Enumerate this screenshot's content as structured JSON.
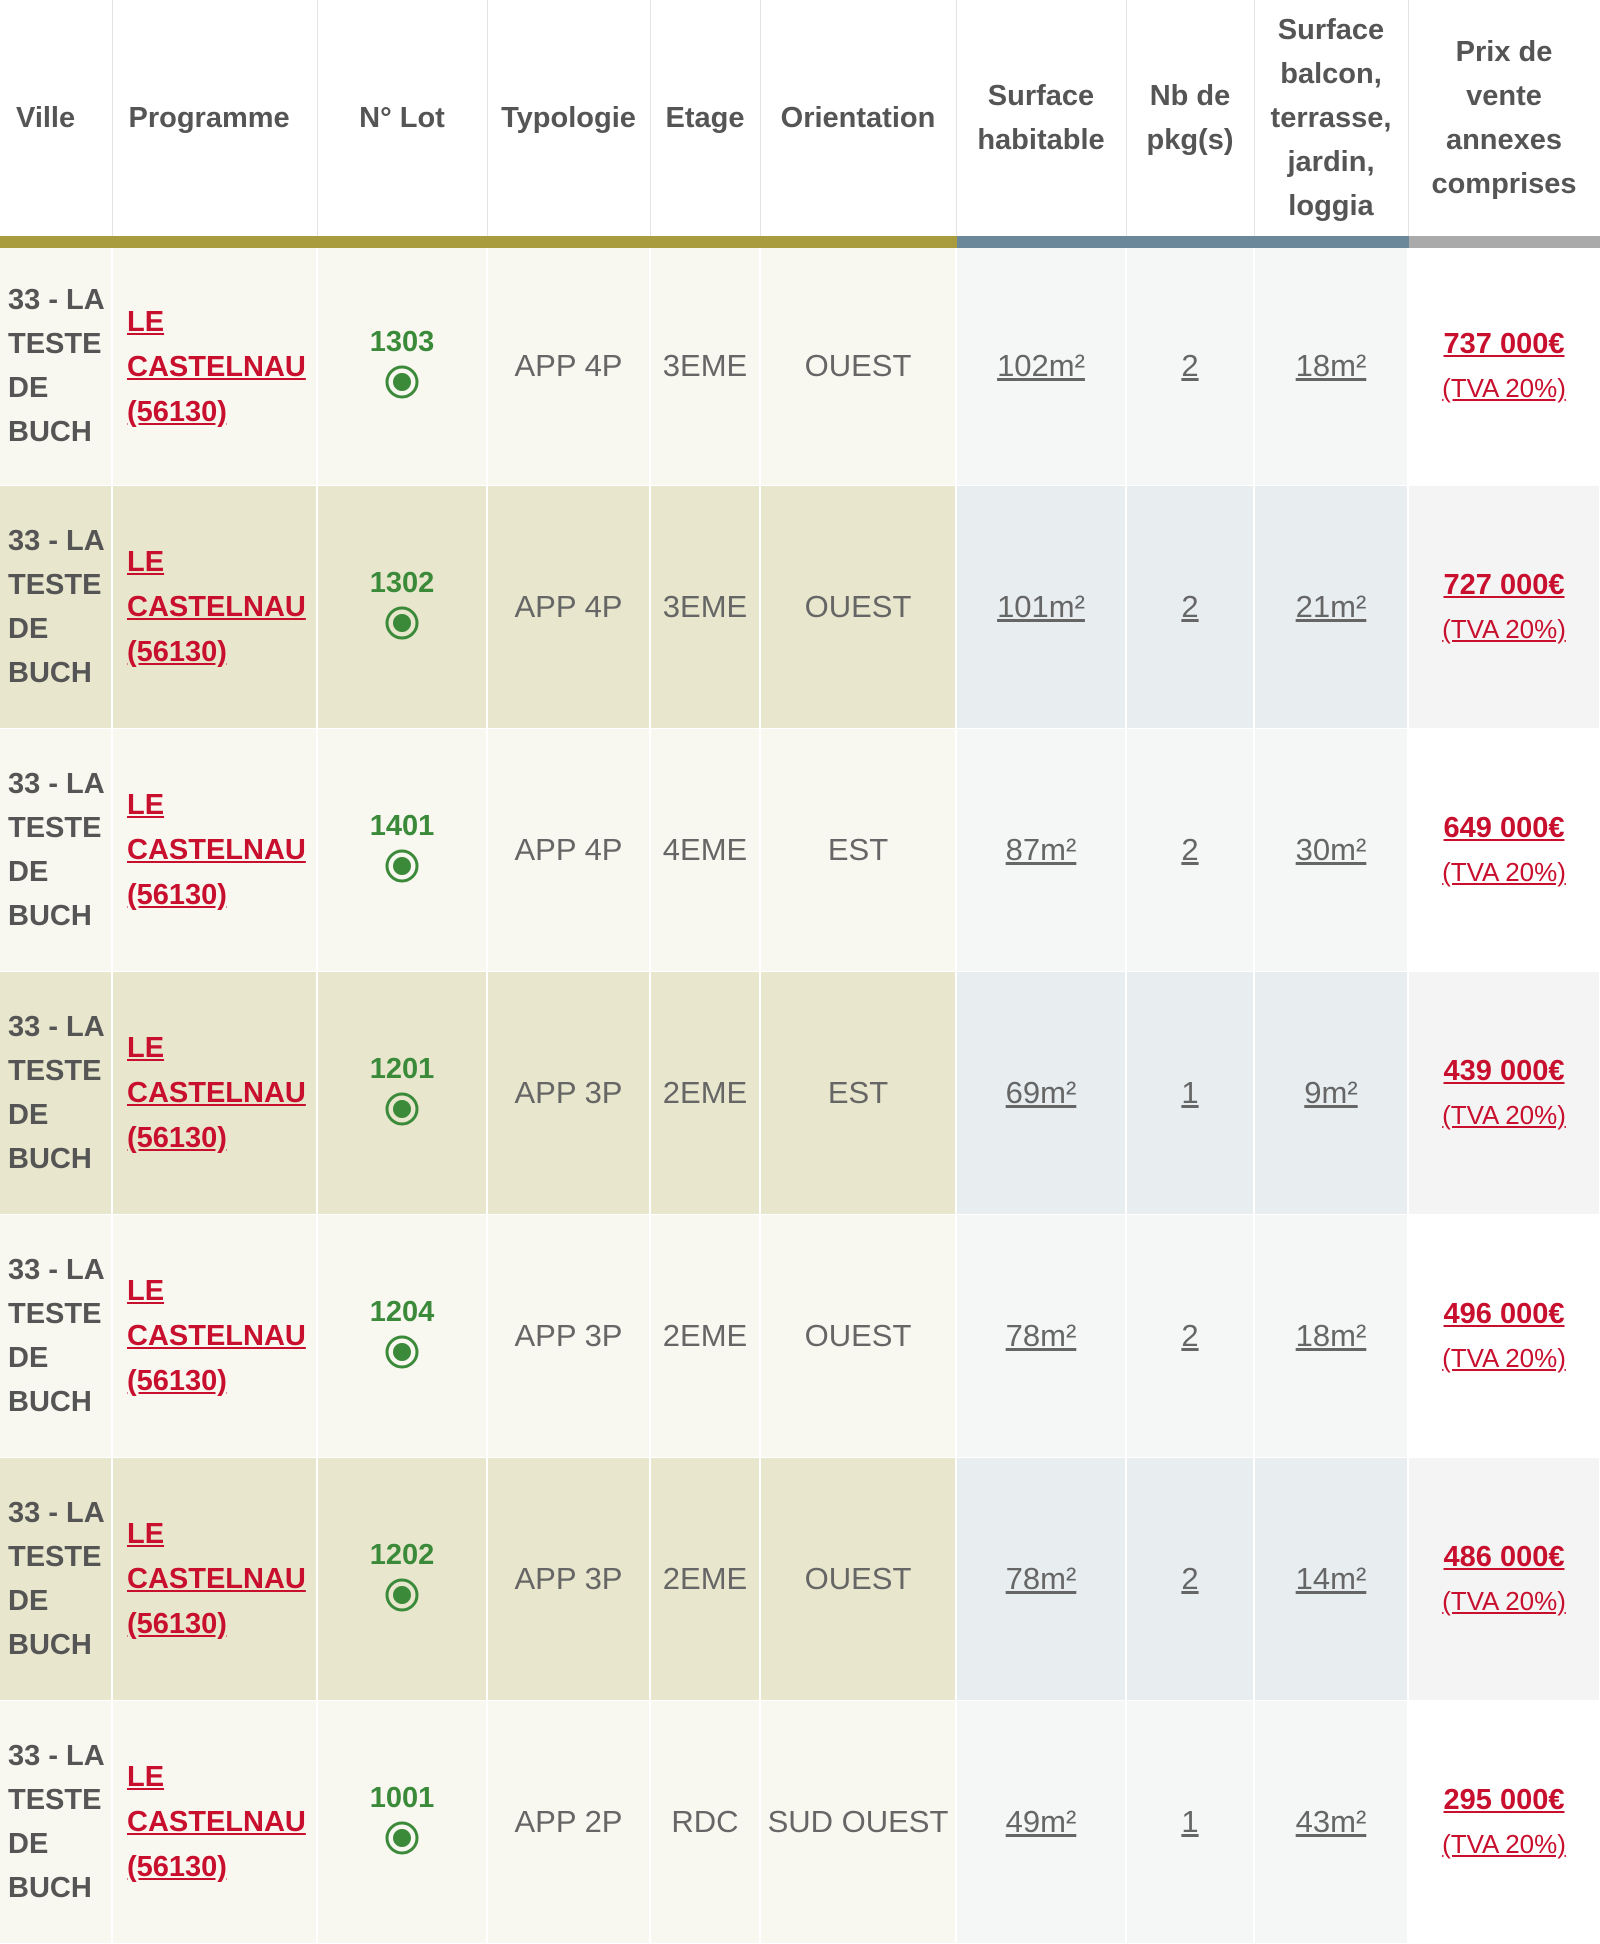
{
  "table": {
    "headers": [
      "Ville",
      "Programme",
      "N° Lot",
      "Typologie",
      "Etage",
      "Orientation",
      "Surface habitable",
      "Nb de pkg(s)",
      "Surface balcon, terrasse, jardin, loggia",
      "Prix de vente annexes comprises"
    ],
    "rows": [
      {
        "ville": "33 - LA TESTE DE BUCH",
        "programme": "LE CASTELNAU (56130)",
        "lot": "1303",
        "typologie": "APP 4P",
        "etage": "3EME",
        "orientation": "OUEST",
        "surface": "102m²",
        "parking": "2",
        "exterieur": "18m²",
        "prix": "737 000€",
        "tva": "(TVA 20%)"
      },
      {
        "ville": "33 - LA TESTE DE BUCH",
        "programme": "LE CASTELNAU (56130)",
        "lot": "1302",
        "typologie": "APP 4P",
        "etage": "3EME",
        "orientation": "OUEST",
        "surface": "101m²",
        "parking": "2",
        "exterieur": "21m²",
        "prix": "727 000€",
        "tva": "(TVA 20%)"
      },
      {
        "ville": "33 - LA TESTE DE BUCH",
        "programme": "LE CASTELNAU (56130)",
        "lot": "1401",
        "typologie": "APP 4P",
        "etage": "4EME",
        "orientation": "EST",
        "surface": "87m²",
        "parking": "2",
        "exterieur": "30m²",
        "prix": "649 000€",
        "tva": "(TVA 20%)"
      },
      {
        "ville": "33 - LA TESTE DE BUCH",
        "programme": "LE CASTELNAU (56130)",
        "lot": "1201",
        "typologie": "APP 3P",
        "etage": "2EME",
        "orientation": "EST",
        "surface": "69m²",
        "parking": "1",
        "exterieur": "9m²",
        "prix": "439 000€",
        "tva": "(TVA 20%)"
      },
      {
        "ville": "33 - LA TESTE DE BUCH",
        "programme": "LE CASTELNAU (56130)",
        "lot": "1204",
        "typologie": "APP 3P",
        "etage": "2EME",
        "orientation": "OUEST",
        "surface": "78m²",
        "parking": "2",
        "exterieur": "18m²",
        "prix": "496 000€",
        "tva": "(TVA 20%)"
      },
      {
        "ville": "33 - LA TESTE DE BUCH",
        "programme": "LE CASTELNAU (56130)",
        "lot": "1202",
        "typologie": "APP 3P",
        "etage": "2EME",
        "orientation": "OUEST",
        "surface": "78m²",
        "parking": "2",
        "exterieur": "14m²",
        "prix": "486 000€",
        "tva": "(TVA 20%)"
      },
      {
        "ville": "33 - LA TESTE DE BUCH",
        "programme": "LE CASTELNAU (56130)",
        "lot": "1001",
        "typologie": "APP 2P",
        "etage": "RDC",
        "orientation": "SUD OUEST",
        "surface": "49m²",
        "parking": "1",
        "exterieur": "43m²",
        "prix": "295 000€",
        "tva": "(TVA 20%)"
      }
    ]
  }
}
